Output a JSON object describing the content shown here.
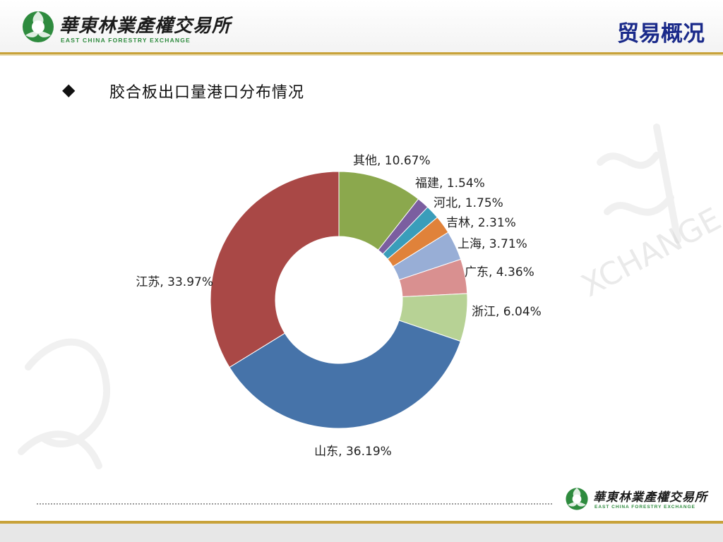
{
  "brand": {
    "name_cn": "華東林業產權交易所",
    "name_en": "EAST CHINA FORESTRY EXCHANGE",
    "watermark_text": "XCHANGE",
    "colors": {
      "gold": "#c8a23a",
      "green": "#2e8b3e",
      "title_blue": "#1a2a8a"
    }
  },
  "header": {
    "title": "贸易概况"
  },
  "content": {
    "bullet_icon": "diamond-bullet-icon",
    "subtitle": "胶合板出口量港口分布情况"
  },
  "chart_data": {
    "type": "pie",
    "variant": "donut",
    "title": "",
    "legend": "none",
    "slices": [
      {
        "label": "其他, 10.67%",
        "name": "其他",
        "value": 10.67,
        "color": "#8BA84D"
      },
      {
        "label": "福建, 1.54%",
        "name": "福建",
        "value": 1.54,
        "color": "#7B5EA0"
      },
      {
        "label": "河北, 1.75%",
        "name": "河北",
        "value": 1.75,
        "color": "#3A9DBA"
      },
      {
        "label": "吉林, 2.31%",
        "name": "吉林",
        "value": 2.31,
        "color": "#E0823A"
      },
      {
        "label": "上海, 3.71%",
        "name": "上海",
        "value": 3.71,
        "color": "#98AED6"
      },
      {
        "label": "广东, 4.36%",
        "name": "广东",
        "value": 4.36,
        "color": "#D99090"
      },
      {
        "label": "浙江, 6.04%",
        "name": "浙江",
        "value": 6.04,
        "color": "#B7D295"
      },
      {
        "label": "山东, 36.19%",
        "name": "山东",
        "value": 36.19,
        "color": "#4673A9"
      },
      {
        "label": "江苏, 33.97%",
        "name": "江苏",
        "value": 33.97,
        "color": "#A94846"
      }
    ]
  }
}
